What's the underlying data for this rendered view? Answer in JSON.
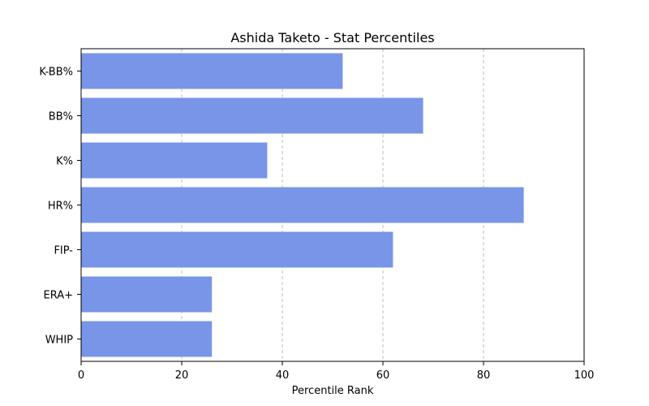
{
  "chart_data": {
    "type": "bar",
    "orientation": "horizontal",
    "title": "Ashida Taketo - Stat Percentiles",
    "xlabel": "Percentile Rank",
    "ylabel": "",
    "categories": [
      "K-BB%",
      "BB%",
      "K%",
      "HR%",
      "FIP-",
      "ERA+",
      "WHIP"
    ],
    "values": [
      52,
      68,
      37,
      88,
      62,
      26,
      26
    ],
    "xlim": [
      0,
      100
    ],
    "xticks": [
      "0",
      "20",
      "40",
      "60",
      "80",
      "100"
    ],
    "grid": "x-dashed",
    "bar_color": "#7895e8"
  }
}
